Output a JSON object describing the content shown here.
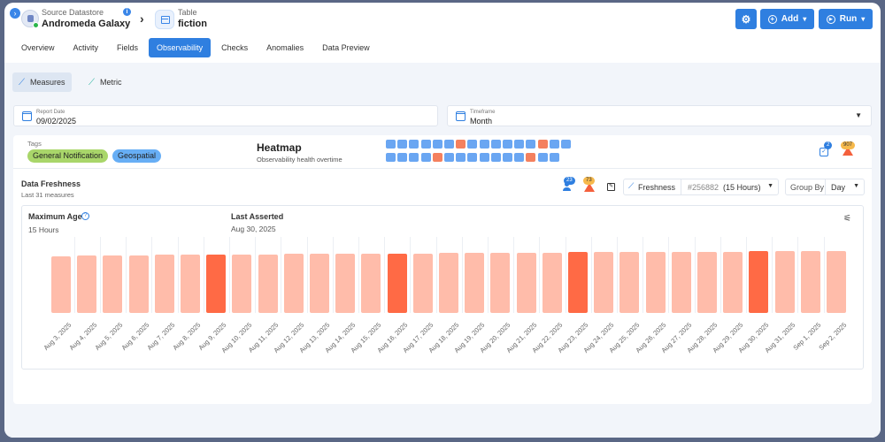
{
  "header": {
    "source_label": "Source Datastore",
    "source_name": "Andromeda Galaxy",
    "table_label": "Table",
    "table_name": "fiction",
    "add_label": "Add",
    "run_label": "Run"
  },
  "tabs": [
    "Overview",
    "Activity",
    "Fields",
    "Observability",
    "Checks",
    "Anomalies",
    "Data Preview"
  ],
  "active_tab": "Observability",
  "subtabs": {
    "measures": "Measures",
    "metric": "Metric"
  },
  "report_date": {
    "label": "Report Date",
    "value": "09/02/2025"
  },
  "timeframe": {
    "label": "Timeframe",
    "value": "Month"
  },
  "tags": {
    "label": "Tags",
    "items": [
      "General Notification",
      "Geospatial"
    ]
  },
  "heatmap": {
    "title": "Heatmap",
    "subtitle": "Observability health overtime",
    "row1": [
      "ok",
      "ok",
      "ok",
      "ok",
      "ok",
      "ok",
      "bad",
      "ok",
      "ok",
      "ok",
      "ok",
      "ok",
      "ok",
      "bad",
      "ok",
      "ok"
    ],
    "row2": [
      "ok",
      "ok",
      "ok",
      "ok",
      "bad",
      "ok",
      "ok",
      "ok",
      "ok",
      "ok",
      "ok",
      "ok",
      "bad",
      "ok",
      "ok"
    ],
    "checks_count": "2",
    "anomalies_count": "907"
  },
  "freshness": {
    "title": "Data Freshness",
    "subtitle": "Last 31 measures",
    "user_count": "23",
    "warn_count": "73",
    "metric_label": "Freshness",
    "metric_id": "#256882",
    "metric_value": "(15 Hours)",
    "group_by_label": "Group By",
    "group_by_value": "Day"
  },
  "summary": {
    "max_age_label": "Maximum Age",
    "max_age_value": "15 Hours",
    "last_asserted_label": "Last Asserted",
    "last_asserted_value": "Aug 30, 2025"
  },
  "colors": {
    "accent": "#2f7fe0",
    "bar_normal": "#ffbcaa",
    "bar_anomaly": "#ff6a45",
    "tag_green": "#a9d66a",
    "tag_blue": "#67aef5"
  },
  "chart_data": {
    "type": "bar",
    "categories": [
      "Aug 3, 2025",
      "Aug 4, 2025",
      "Aug 5, 2025",
      "Aug 6, 2025",
      "Aug 7, 2025",
      "Aug 8, 2025",
      "Aug 9, 2025",
      "Aug 10, 2025",
      "Aug 11, 2025",
      "Aug 12, 2025",
      "Aug 13, 2025",
      "Aug 14, 2025",
      "Aug 15, 2025",
      "Aug 16, 2025",
      "Aug 17, 2025",
      "Aug 18, 2025",
      "Aug 19, 2025",
      "Aug 20, 2025",
      "Aug 21, 2025",
      "Aug 22, 2025",
      "Aug 23, 2025",
      "Aug 24, 2025",
      "Aug 25, 2025",
      "Aug 26, 2025",
      "Aug 27, 2025",
      "Aug 28, 2025",
      "Aug 29, 2025",
      "Aug 30, 2025",
      "Aug 31, 2025",
      "Sep 1, 2025",
      "Sep 2, 2025"
    ],
    "values": [
      13.8,
      13.9,
      14.0,
      14.0,
      14.1,
      14.1,
      14.2,
      14.2,
      14.2,
      14.3,
      14.3,
      14.3,
      14.4,
      14.4,
      14.4,
      14.5,
      14.5,
      14.6,
      14.6,
      14.6,
      14.7,
      14.7,
      14.7,
      14.7,
      14.8,
      14.8,
      14.8,
      14.9,
      14.9,
      15.0,
      15.0
    ],
    "anomaly": [
      false,
      false,
      false,
      false,
      false,
      false,
      true,
      false,
      false,
      false,
      false,
      false,
      false,
      true,
      false,
      false,
      false,
      false,
      false,
      false,
      true,
      false,
      false,
      false,
      false,
      false,
      false,
      true,
      false,
      false,
      false
    ],
    "ylim": [
      0,
      15
    ]
  }
}
